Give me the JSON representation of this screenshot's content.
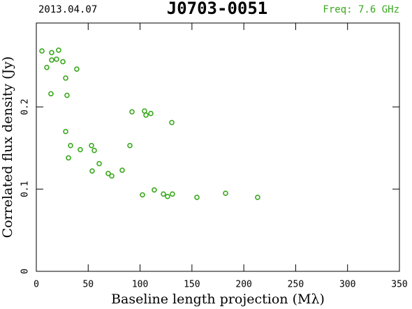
{
  "chart_data": {
    "type": "scatter",
    "date": "2013.04.07",
    "title": "J0703-0051",
    "frequency": "Freq: 7.6 GHz",
    "xlabel": "Baseline length projection (Mλ)",
    "ylabel": "Correlated flux density (Jy)",
    "color": "#3aa81e",
    "xlim": [
      0,
      350
    ],
    "xticks": [
      0,
      50,
      100,
      150,
      200,
      250,
      300,
      350
    ],
    "ylim": [
      0,
      0.302
    ],
    "yticks": [
      0,
      0.1,
      0.2
    ],
    "x": [
      5.4,
      10.1,
      14.8,
      14.8,
      19.5,
      21.5,
      25.6,
      28.3,
      29.6,
      14.1,
      39.0,
      28.3,
      33.0,
      31.0,
      42.4,
      53.2,
      55.9,
      60.6,
      53.8,
      69.3,
      72.7,
      82.8,
      90.2,
      92.2,
      104.3,
      105.7,
      110.4,
      130.6,
      102.3,
      113.7,
      122.5,
      126.5,
      131.2,
      154.8,
      182.4,
      213.3
    ],
    "values": [
      0.268,
      0.248,
      0.266,
      0.257,
      0.258,
      0.269,
      0.255,
      0.235,
      0.214,
      0.216,
      0.246,
      0.17,
      0.153,
      0.138,
      0.148,
      0.153,
      0.147,
      0.131,
      0.122,
      0.119,
      0.116,
      0.123,
      0.153,
      0.194,
      0.195,
      0.19,
      0.192,
      0.181,
      0.093,
      0.099,
      0.094,
      0.091,
      0.094,
      0.09,
      0.095,
      0.09
    ]
  }
}
